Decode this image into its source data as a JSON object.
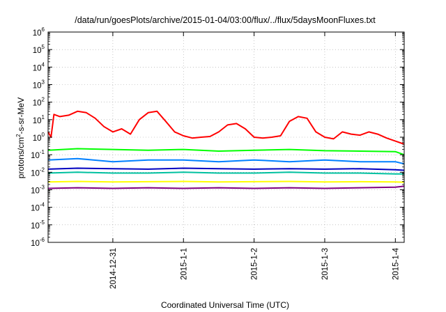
{
  "chart_data": {
    "type": "line",
    "title": "/data/run/goesPlots/archive/2015-01-04/03:00/flux/../flux/5daysMoonFluxes.txt",
    "ylabel_base": "protons/cm",
    "ylabel_sup": "2",
    "ylabel_rest": "-s-sr-MeV",
    "xlabel": "Coordinated Universal Time (UTC)",
    "y_scale": "log",
    "ylim": [
      1e-06,
      1000000.0
    ],
    "y_ticks": [
      {
        "base": "10",
        "exp": "6",
        "value": 1000000.0
      },
      {
        "base": "10",
        "exp": "5",
        "value": 100000.0
      },
      {
        "base": "10",
        "exp": "4",
        "value": 10000.0
      },
      {
        "base": "10",
        "exp": "3",
        "value": 1000.0
      },
      {
        "base": "10",
        "exp": "2",
        "value": 100.0
      },
      {
        "base": "10",
        "exp": "1",
        "value": 10.0
      },
      {
        "base": "10",
        "exp": "0",
        "value": 1.0
      },
      {
        "base": "10",
        "exp": "-1",
        "value": 0.1
      },
      {
        "base": "10",
        "exp": "-2",
        "value": 0.01
      },
      {
        "base": "10",
        "exp": "-3",
        "value": 0.001
      },
      {
        "base": "10",
        "exp": "-4",
        "value": 0.0001
      },
      {
        "base": "10",
        "exp": "-5",
        "value": 1e-05
      },
      {
        "base": "10",
        "exp": "-6",
        "value": 1e-06
      }
    ],
    "xlim": [
      "2014-12-30T02:00",
      "2015-01-04T03:00"
    ],
    "x_ticks": [
      {
        "label": "2014-12-31",
        "value": "2014-12-31T00:00"
      },
      {
        "label": "2015-1-1",
        "value": "2015-01-01T00:00"
      },
      {
        "label": "2015-1-2",
        "value": "2015-01-02T00:00"
      },
      {
        "label": "2015-1-3",
        "value": "2015-01-03T00:00"
      },
      {
        "label": "2015-1-4",
        "value": "2015-01-04T00:00"
      }
    ],
    "grid": true,
    "series": [
      {
        "color": "#ff0000",
        "x": [
          "2014-12-30T02:00",
          "2014-12-30T03:00",
          "2014-12-30T04:00",
          "2014-12-30T06:00",
          "2014-12-30T09:00",
          "2014-12-30T12:00",
          "2014-12-30T15:00",
          "2014-12-30T18:00",
          "2014-12-30T21:00",
          "2014-12-31T00:00",
          "2014-12-31T03:00",
          "2014-12-31T06:00",
          "2014-12-31T09:00",
          "2014-12-31T12:00",
          "2014-12-31T15:00",
          "2014-12-31T18:00",
          "2014-12-31T21:00",
          "2015-01-01T00:00",
          "2015-01-01T03:00",
          "2015-01-01T06:00",
          "2015-01-01T09:00",
          "2015-01-01T12:00",
          "2015-01-01T15:00",
          "2015-01-01T18:00",
          "2015-01-01T21:00",
          "2015-01-02T00:00",
          "2015-01-02T03:00",
          "2015-01-02T06:00",
          "2015-01-02T09:00",
          "2015-01-02T12:00",
          "2015-01-02T15:00",
          "2015-01-02T18:00",
          "2015-01-02T21:00",
          "2015-01-03T00:00",
          "2015-01-03T03:00",
          "2015-01-03T06:00",
          "2015-01-03T09:00",
          "2015-01-03T12:00",
          "2015-01-03T15:00",
          "2015-01-03T18:00",
          "2015-01-03T21:00",
          "2015-01-04T00:00",
          "2015-01-04T03:00"
        ],
        "y": [
          2,
          1,
          20,
          15,
          18,
          30,
          25,
          12,
          4,
          2,
          3,
          1.5,
          10,
          25,
          30,
          8,
          2,
          1.2,
          0.9,
          1,
          1.1,
          2,
          5,
          6,
          3,
          1,
          0.9,
          1,
          1.2,
          8,
          15,
          12,
          2,
          1,
          0.8,
          2,
          1.5,
          1.3,
          2,
          1.5,
          0.9,
          0.6,
          0.4
        ]
      },
      {
        "color": "#00ff00",
        "x": [
          "2014-12-30T02:00",
          "2014-12-30T12:00",
          "2014-12-31T00:00",
          "2014-12-31T12:00",
          "2015-01-01T00:00",
          "2015-01-01T12:00",
          "2015-01-02T00:00",
          "2015-01-02T12:00",
          "2015-01-03T00:00",
          "2015-01-03T12:00",
          "2015-01-04T00:00",
          "2015-01-04T03:00"
        ],
        "y": [
          0.18,
          0.22,
          0.2,
          0.18,
          0.2,
          0.16,
          0.18,
          0.2,
          0.17,
          0.16,
          0.15,
          0.1
        ]
      },
      {
        "color": "#0080ff",
        "x": [
          "2014-12-30T02:00",
          "2014-12-30T12:00",
          "2014-12-31T00:00",
          "2014-12-31T12:00",
          "2015-01-01T00:00",
          "2015-01-01T12:00",
          "2015-01-02T00:00",
          "2015-01-02T12:00",
          "2015-01-03T00:00",
          "2015-01-03T12:00",
          "2015-01-04T00:00",
          "2015-01-04T03:00"
        ],
        "y": [
          0.05,
          0.06,
          0.04,
          0.05,
          0.05,
          0.04,
          0.05,
          0.04,
          0.05,
          0.04,
          0.04,
          0.03
        ]
      },
      {
        "color": "#0000c0",
        "x": [
          "2014-12-30T02:00",
          "2014-12-30T12:00",
          "2014-12-31T00:00",
          "2014-12-31T12:00",
          "2015-01-01T00:00",
          "2015-01-01T12:00",
          "2015-01-02T00:00",
          "2015-01-02T12:00",
          "2015-01-03T00:00",
          "2015-01-03T12:00",
          "2015-01-04T00:00",
          "2015-01-04T03:00"
        ],
        "y": [
          0.015,
          0.017,
          0.016,
          0.015,
          0.017,
          0.016,
          0.015,
          0.016,
          0.015,
          0.016,
          0.014,
          0.013
        ]
      },
      {
        "color": "#00c0a0",
        "x": [
          "2014-12-30T02:00",
          "2014-12-30T12:00",
          "2014-12-31T00:00",
          "2014-12-31T12:00",
          "2015-01-01T00:00",
          "2015-01-01T12:00",
          "2015-01-02T00:00",
          "2015-01-02T12:00",
          "2015-01-03T00:00",
          "2015-01-03T12:00",
          "2015-01-04T00:00",
          "2015-01-04T03:00"
        ],
        "y": [
          0.009,
          0.01,
          0.009,
          0.009,
          0.01,
          0.009,
          0.009,
          0.01,
          0.009,
          0.009,
          0.008,
          0.008
        ]
      },
      {
        "color": "#ffff00",
        "x": [
          "2014-12-30T02:00",
          "2014-12-30T12:00",
          "2014-12-31T00:00",
          "2014-12-31T12:00",
          "2015-01-01T00:00",
          "2015-01-01T12:00",
          "2015-01-02T00:00",
          "2015-01-02T12:00",
          "2015-01-03T00:00",
          "2015-01-03T12:00",
          "2015-01-04T00:00",
          "2015-01-04T03:00"
        ],
        "y": [
          0.0028,
          0.003,
          0.0028,
          0.0029,
          0.003,
          0.0028,
          0.0029,
          0.003,
          0.0028,
          0.0029,
          0.0028,
          0.0027
        ]
      },
      {
        "color": "#800080",
        "x": [
          "2014-12-30T02:00",
          "2014-12-30T12:00",
          "2014-12-31T00:00",
          "2014-12-31T12:00",
          "2015-01-01T00:00",
          "2015-01-01T12:00",
          "2015-01-02T00:00",
          "2015-01-02T12:00",
          "2015-01-03T00:00",
          "2015-01-03T12:00",
          "2015-01-04T00:00",
          "2015-01-04T03:00"
        ],
        "y": [
          0.0012,
          0.0013,
          0.0012,
          0.0013,
          0.0012,
          0.0013,
          0.0012,
          0.0013,
          0.0012,
          0.0013,
          0.0014,
          0.0016
        ]
      }
    ]
  }
}
